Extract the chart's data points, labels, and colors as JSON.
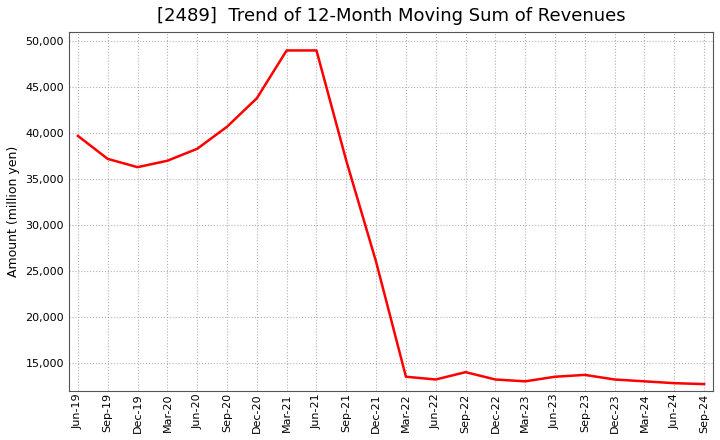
{
  "title": "[2489]  Trend of 12-Month Moving Sum of Revenues",
  "ylabel": "Amount (million yen)",
  "line_color": "#FF0000",
  "background_color": "#FFFFFF",
  "grid_color": "#AAAAAA",
  "ylim": [
    12000,
    51000
  ],
  "yticks": [
    15000,
    20000,
    25000,
    30000,
    35000,
    40000,
    45000,
    50000
  ],
  "x_labels": [
    "Jun-19",
    "Sep-19",
    "Dec-19",
    "Mar-20",
    "Jun-20",
    "Sep-20",
    "Dec-20",
    "Mar-21",
    "Jun-21",
    "Sep-21",
    "Dec-21",
    "Mar-22",
    "Jun-22",
    "Sep-22",
    "Dec-22",
    "Mar-23",
    "Jun-23",
    "Sep-23",
    "Dec-23",
    "Mar-24",
    "Jun-24",
    "Sep-24"
  ],
  "y_values": [
    39700,
    37200,
    36300,
    37000,
    38300,
    40700,
    43800,
    49000,
    49000,
    37000,
    26000,
    13500,
    13200,
    14000,
    13200,
    13000,
    13500,
    13700,
    13200,
    13000,
    12800,
    12700
  ],
  "title_fontsize": 13,
  "ylabel_fontsize": 9,
  "tick_fontsize": 8,
  "line_width": 1.8
}
